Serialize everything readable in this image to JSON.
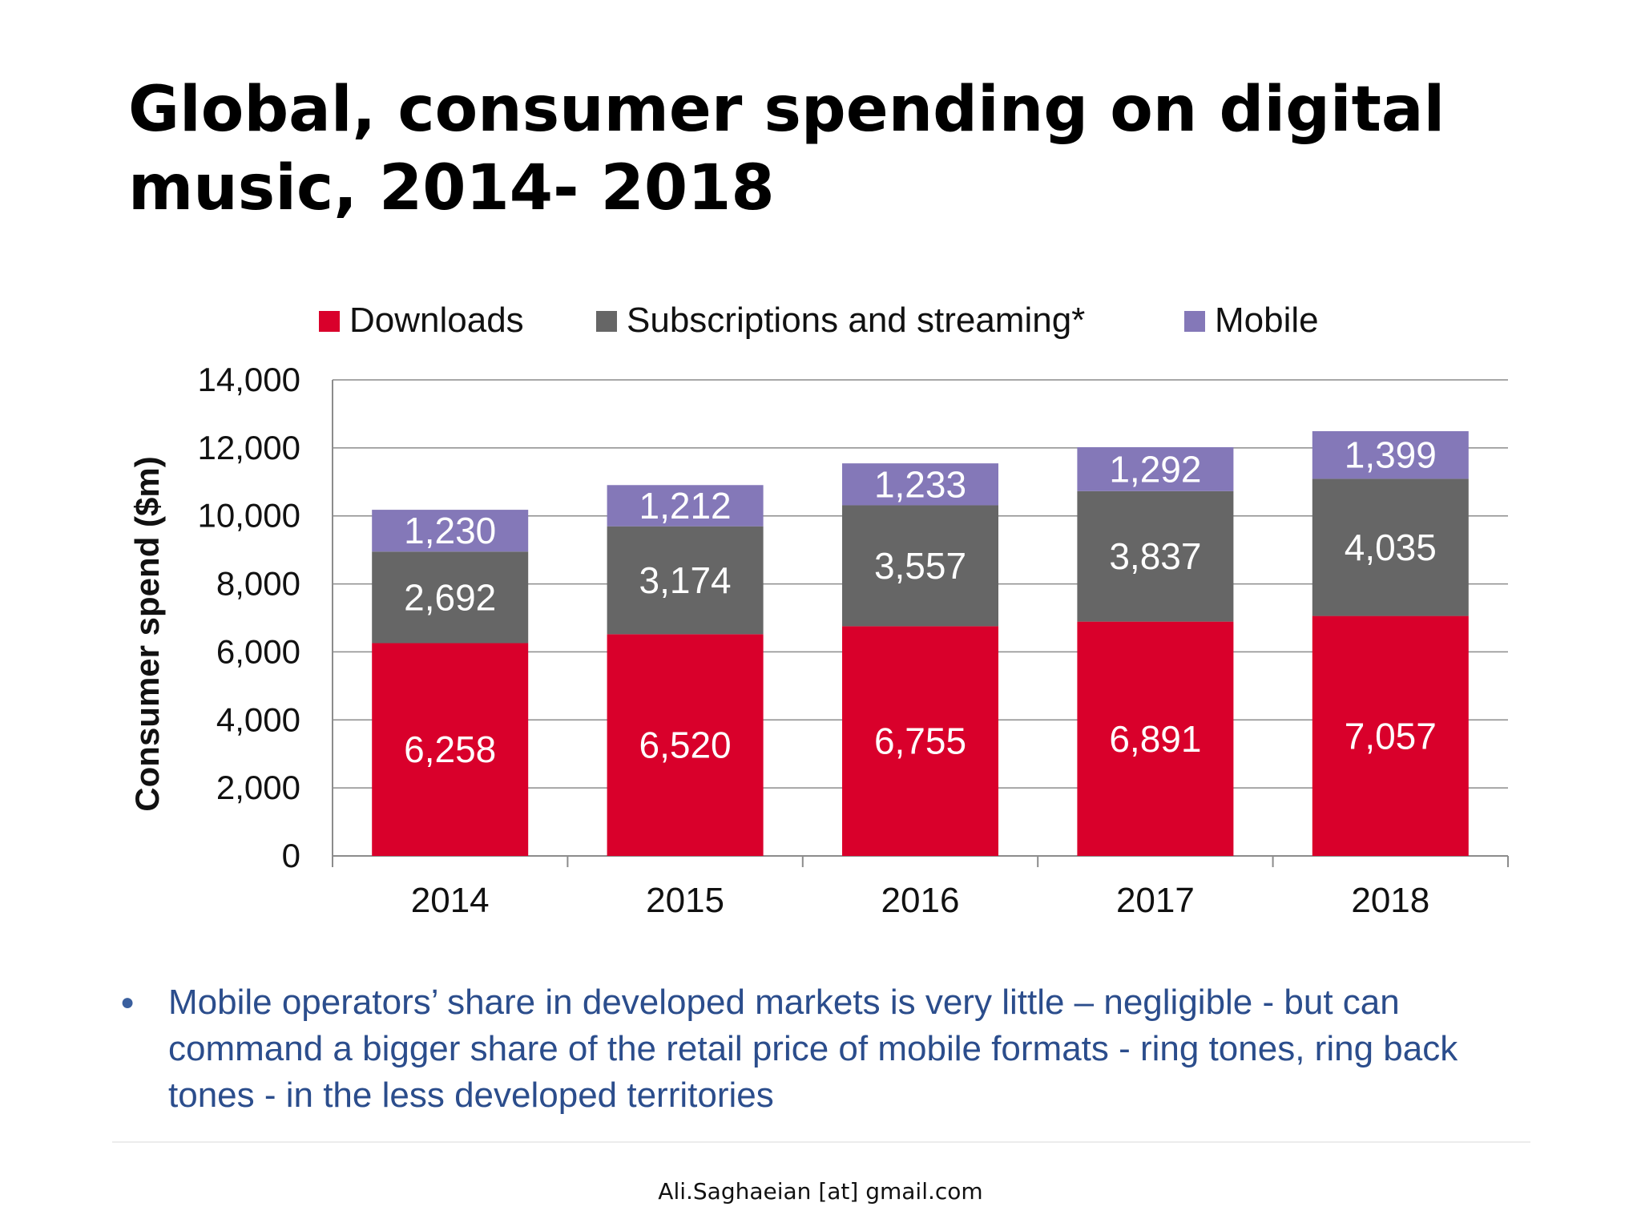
{
  "page": {
    "title": "Global, consumer spending on digital music, 2014- 2018",
    "bullet": "Mobile operators’ share in developed markets is very little – negligible - but can command a bigger share of the retail price of mobile formats - ring tones, ring back tones - in the less developed territories",
    "footer": "Ali.Saghaeian [at] gmail.com"
  },
  "chart_data": {
    "type": "bar",
    "stacked": true,
    "categories": [
      "2014",
      "2015",
      "2016",
      "2017",
      "2018"
    ],
    "series": [
      {
        "name": "Downloads",
        "color": "#d9002b",
        "values": [
          6258,
          6520,
          6755,
          6891,
          7057
        ]
      },
      {
        "name": "Subscriptions and streaming*",
        "color": "#666666",
        "values": [
          2692,
          3174,
          3557,
          3837,
          4035
        ]
      },
      {
        "name": "Mobile",
        "color": "#8478b8",
        "values": [
          1230,
          1212,
          1233,
          1292,
          1399
        ]
      }
    ],
    "data_labels": {
      "Downloads": [
        "6,258",
        "6,520",
        "6,755",
        "6,891",
        "7,057"
      ],
      "Subscriptions and streaming*": [
        "2,692",
        "3,174",
        "3,557",
        "3,837",
        "4,035"
      ],
      "Mobile": [
        "1,230",
        "1,212",
        "1,233",
        "1,292",
        "1,399"
      ]
    },
    "ylabel": "Consumer spend ($m)",
    "xlabel": "",
    "ylim": [
      0,
      14000
    ],
    "yticks": [
      0,
      2000,
      4000,
      6000,
      8000,
      10000,
      12000,
      14000
    ],
    "ytick_labels": [
      "0",
      "2,000",
      "4,000",
      "6,000",
      "8,000",
      "10,000",
      "12,000",
      "14,000"
    ],
    "grid": true,
    "legend_position": "top"
  }
}
